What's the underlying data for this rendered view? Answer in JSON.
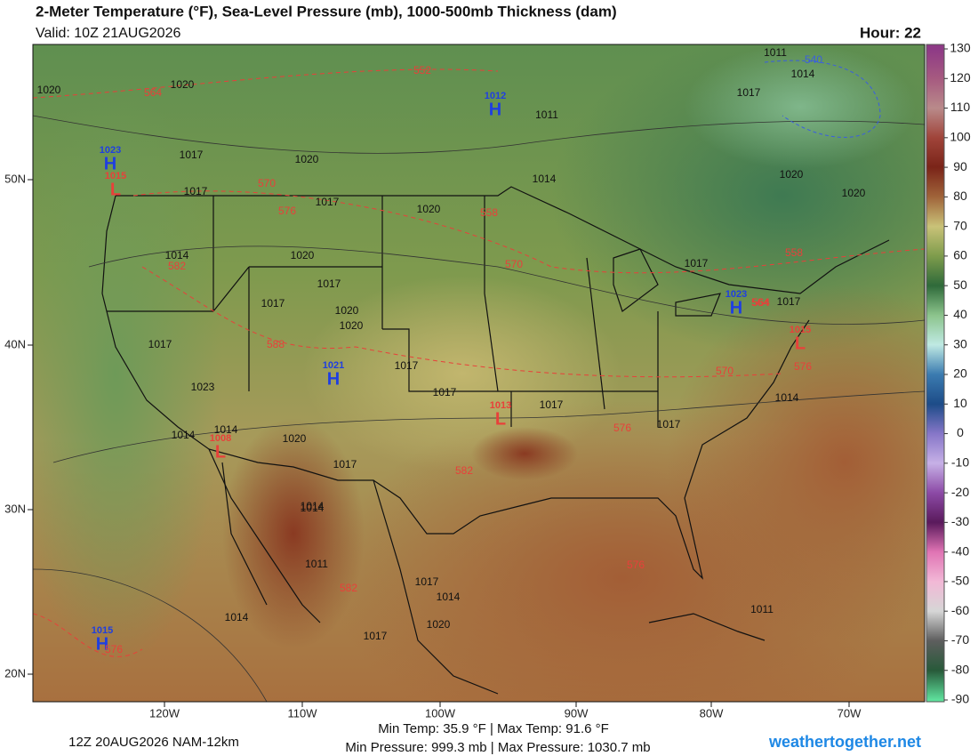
{
  "header": {
    "title": "2-Meter Temperature (°F), Sea-Level Pressure (mb), 1000-500mb Thickness (dam)",
    "valid": "Valid: 10Z 21AUG2026",
    "hour": "Hour: 22"
  },
  "map": {
    "lon_labels": [
      "120W",
      "110W",
      "100W",
      "90W",
      "80W",
      "70W"
    ],
    "lat_labels": [
      "50N",
      "40N",
      "30N",
      "20N"
    ],
    "highs_lows": [
      {
        "letter": "H",
        "pressure": 1012
      },
      {
        "letter": "H",
        "pressure": 1023
      },
      {
        "letter": "L",
        "pressure": 1015
      },
      {
        "letter": "H",
        "pressure": 1023
      },
      {
        "letter": "H",
        "pressure": 1021
      },
      {
        "letter": "L",
        "pressure": 1013
      },
      {
        "letter": "L",
        "pressure": 1008
      },
      {
        "letter": "L",
        "pressure": 1015
      },
      {
        "letter": "H",
        "pressure": 1015
      }
    ],
    "isobar_labels": [
      1020,
      1020,
      1011,
      1014,
      1017,
      1011,
      1020,
      1017,
      1017,
      1017,
      1014,
      1020,
      1014,
      1020,
      1017,
      1017,
      1020,
      1020,
      1017,
      1023,
      1017,
      1017,
      1014,
      1017,
      1017,
      1014,
      1014,
      1014,
      1020,
      1017,
      1014,
      1011,
      1017,
      1014,
      1020,
      1017,
      1014,
      1017,
      1020,
      1017,
      1020,
      1011
    ],
    "thickness_labels": [
      552,
      564,
      558,
      570,
      576,
      564,
      570,
      582,
      588,
      558,
      564,
      570,
      576,
      576,
      582,
      576,
      582,
      576,
      540
    ]
  },
  "colorbar": {
    "ticks": [
      130,
      120,
      110,
      100,
      90,
      80,
      70,
      60,
      50,
      40,
      30,
      20,
      10,
      0,
      -10,
      -20,
      -30,
      -40,
      -50,
      -60,
      -70,
      -80,
      -90
    ],
    "colors": [
      "#8e3a86",
      "#a65a80",
      "#b98a8a",
      "#a0443a",
      "#7a2418",
      "#a0643a",
      "#c9c278",
      "#7e9c4c",
      "#2f6a3a",
      "#8cc48c",
      "#bfe9e3",
      "#3b7bb0",
      "#1d4c88",
      "#8676c8",
      "#c6b0e6",
      "#8c4aa6",
      "#5a1a5c",
      "#e074b4",
      "#f2b8d6",
      "#d6d6d6",
      "#5e5e5e",
      "#285a3a",
      "#5ee09c"
    ]
  },
  "footer": {
    "run": "12Z 20AUG2026 NAM-12km",
    "temps": "Min Temp:  35.9 °F | Max Temp:  91.6 °F",
    "pressures": "Min Pressure: 999.3 mb | Max Pressure: 1030.7 mb",
    "site": "weathertogether.net"
  }
}
